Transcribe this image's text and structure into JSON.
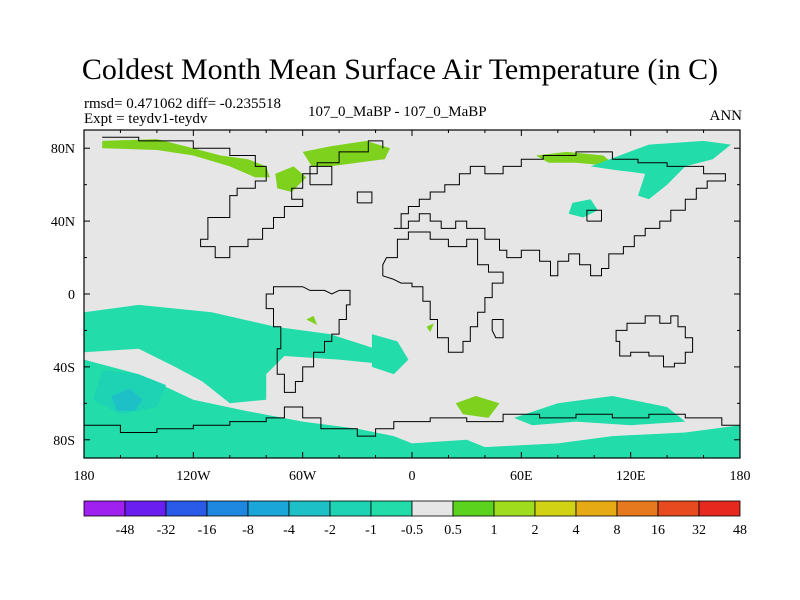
{
  "title": "Coldest Month Mean Surface Air Temperature (in C)",
  "subtitle_stats": "rmsd= 0.471062 diff= -0.235518",
  "subtitle_expt": "Expt = teydv1-teydv",
  "subtitle_center": "107_0_MaBP - 107_0_MaBP",
  "season": "ANN",
  "chart_data": {
    "type": "heatmap",
    "title": "Coldest Month Mean Surface Air Temperature (in C)",
    "x_range": [
      -180,
      180
    ],
    "y_range": [
      -90,
      90
    ],
    "x_ticks": [
      {
        "value": -180,
        "label": "180"
      },
      {
        "value": -120,
        "label": "120W"
      },
      {
        "value": -60,
        "label": "60W"
      },
      {
        "value": 0,
        "label": "0"
      },
      {
        "value": 60,
        "label": "60E"
      },
      {
        "value": 120,
        "label": "120E"
      },
      {
        "value": 180,
        "label": "180"
      }
    ],
    "y_ticks": [
      {
        "value": 80,
        "label": "80N"
      },
      {
        "value": 40,
        "label": "40N"
      },
      {
        "value": 0,
        "label": "0"
      },
      {
        "value": -40,
        "label": "40S"
      },
      {
        "value": -80,
        "label": "80S"
      }
    ],
    "colorbar": {
      "labels": [
        "-48",
        "-32",
        "-16",
        "-8",
        "-4",
        "-2",
        "-1",
        "-0.5",
        "0.5",
        "1",
        "2",
        "4",
        "8",
        "16",
        "32",
        "48"
      ],
      "colors": [
        "#a020f0",
        "#6a1ff0",
        "#2a5ae8",
        "#1e88e0",
        "#1aa6d8",
        "#1ec0c8",
        "#1ed2b4",
        "#22dcaa",
        "#e6e6e6",
        "#5ad21e",
        "#a0dc1e",
        "#d2d214",
        "#e6aa14",
        "#e6781e",
        "#e64a1e",
        "#e6281e"
      ]
    },
    "regions": [
      {
        "value": 1,
        "color": "#7ed21e",
        "points": [
          [
            -170,
            84
          ],
          [
            -140,
            85
          ],
          [
            -120,
            80
          ],
          [
            -105,
            76
          ],
          [
            -90,
            74
          ],
          [
            -80,
            70
          ],
          [
            -78,
            64
          ],
          [
            -86,
            64
          ],
          [
            -100,
            70
          ],
          [
            -120,
            76
          ],
          [
            -140,
            79
          ],
          [
            -170,
            80
          ]
        ]
      },
      {
        "value": 1,
        "color": "#7ed21e",
        "points": [
          [
            -60,
            78
          ],
          [
            -45,
            81
          ],
          [
            -25,
            84
          ],
          [
            -12,
            80
          ],
          [
            -15,
            74
          ],
          [
            -30,
            72
          ],
          [
            -45,
            70
          ],
          [
            -55,
            70
          ]
        ]
      },
      {
        "value": 1,
        "color": "#7ed21e",
        "points": [
          [
            -75,
            66
          ],
          [
            -65,
            70
          ],
          [
            -58,
            64
          ],
          [
            -66,
            56
          ],
          [
            -74,
            58
          ]
        ]
      },
      {
        "value": 1,
        "color": "#7ed21e",
        "points": [
          [
            68,
            76
          ],
          [
            85,
            78
          ],
          [
            105,
            76
          ],
          [
            112,
            70
          ],
          [
            90,
            72
          ],
          [
            75,
            72
          ]
        ]
      },
      {
        "value": -0.5,
        "color": "#22dcaa",
        "points": [
          [
            98,
            70
          ],
          [
            130,
            82
          ],
          [
            160,
            84
          ],
          [
            175,
            82
          ],
          [
            165,
            74
          ],
          [
            150,
            70
          ],
          [
            140,
            60
          ],
          [
            130,
            52
          ],
          [
            124,
            54
          ],
          [
            128,
            66
          ],
          [
            112,
            68
          ]
        ]
      },
      {
        "value": -0.5,
        "color": "#22dcaa",
        "points": [
          [
            88,
            50
          ],
          [
            98,
            52
          ],
          [
            102,
            46
          ],
          [
            94,
            42
          ],
          [
            86,
            44
          ]
        ]
      },
      {
        "value": -0.5,
        "color": "#22dcaa",
        "points": [
          [
            -180,
            -10
          ],
          [
            -150,
            -6
          ],
          [
            -110,
            -10
          ],
          [
            -75,
            -18
          ],
          [
            -45,
            -22
          ],
          [
            -20,
            -30
          ],
          [
            -20,
            -38
          ],
          [
            -40,
            -36
          ],
          [
            -70,
            -34
          ],
          [
            -80,
            -44
          ],
          [
            -80,
            -58
          ],
          [
            -100,
            -60
          ],
          [
            -115,
            -48
          ],
          [
            -130,
            -40
          ],
          [
            -150,
            -30
          ],
          [
            -180,
            -32
          ]
        ]
      },
      {
        "value": -0.5,
        "color": "#22dcaa",
        "points": [
          [
            -180,
            -36
          ],
          [
            -150,
            -44
          ],
          [
            -120,
            -58
          ],
          [
            -92,
            -64
          ],
          [
            -60,
            -70
          ],
          [
            -30,
            -74
          ],
          [
            -10,
            -78
          ],
          [
            0,
            -82
          ],
          [
            30,
            -80
          ],
          [
            40,
            -84
          ],
          [
            80,
            -82
          ],
          [
            110,
            -78
          ],
          [
            150,
            -76
          ],
          [
            180,
            -72
          ],
          [
            180,
            -90
          ],
          [
            -180,
            -90
          ]
        ]
      },
      {
        "value": -0.5,
        "color": "#22dcaa",
        "points": [
          [
            56,
            -68
          ],
          [
            80,
            -60
          ],
          [
            110,
            -56
          ],
          [
            140,
            -62
          ],
          [
            150,
            -70
          ],
          [
            120,
            -72
          ],
          [
            90,
            -70
          ],
          [
            66,
            -72
          ]
        ]
      },
      {
        "value": -0.5,
        "color": "#22dcaa",
        "points": [
          [
            -22,
            -22
          ],
          [
            -8,
            -26
          ],
          [
            -2,
            -36
          ],
          [
            -10,
            -44
          ],
          [
            -22,
            -40
          ]
        ]
      },
      {
        "value": -1,
        "color": "#1ed2b4",
        "points": [
          [
            -170,
            -42
          ],
          [
            -150,
            -44
          ],
          [
            -135,
            -50
          ],
          [
            -140,
            -62
          ],
          [
            -160,
            -66
          ],
          [
            -175,
            -58
          ]
        ]
      },
      {
        "value": -2,
        "color": "#1ec0c8",
        "points": [
          [
            -165,
            -56
          ],
          [
            -155,
            -52
          ],
          [
            -148,
            -58
          ],
          [
            -152,
            -64
          ],
          [
            -162,
            -64
          ]
        ]
      },
      {
        "value": 1,
        "color": "#7ed21e",
        "points": [
          [
            24,
            -60
          ],
          [
            35,
            -56
          ],
          [
            48,
            -60
          ],
          [
            42,
            -68
          ],
          [
            28,
            -66
          ]
        ]
      },
      {
        "value": 1,
        "color": "#7ed21e",
        "points": [
          [
            8,
            -18
          ],
          [
            12,
            -16
          ],
          [
            10,
            -21
          ]
        ]
      },
      {
        "value": 1,
        "color": "#7ed21e",
        "points": [
          [
            -58,
            -14
          ],
          [
            -54,
            -12
          ],
          [
            -52,
            -17
          ]
        ]
      }
    ]
  }
}
